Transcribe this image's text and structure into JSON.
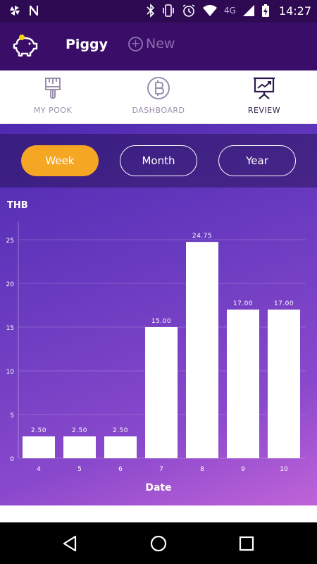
{
  "status_bar": {
    "time": "14:27",
    "network": "4G",
    "icons": [
      "pinwheel-icon",
      "n-icon",
      "bluetooth-icon",
      "vibrate-icon",
      "alarm-icon",
      "wifi-icon",
      "signal-icon",
      "battery-charging-icon"
    ]
  },
  "app_bar": {
    "title": "Piggy",
    "new_label": "New",
    "logo_icon": "piggy-bank-icon",
    "background": "#3a0e68"
  },
  "tabs": [
    {
      "label": "MY POOK",
      "icon": "brush-icon",
      "active": false
    },
    {
      "label": "DASHBOARD",
      "icon": "bitcoin-icon",
      "active": false
    },
    {
      "label": "REVIEW",
      "icon": "presentation-chart-icon",
      "active": true
    }
  ],
  "period": {
    "options": [
      {
        "label": "Week",
        "selected": true
      },
      {
        "label": "Month",
        "selected": false
      },
      {
        "label": "Year",
        "selected": false
      }
    ],
    "accent": "#f5a623"
  },
  "chart_data": {
    "type": "bar",
    "categories": [
      "4",
      "5",
      "6",
      "7",
      "8",
      "9",
      "10"
    ],
    "values": [
      2.5,
      2.5,
      2.5,
      15.0,
      24.75,
      17.0,
      17.0
    ],
    "value_labels": [
      "2.50",
      "2.50",
      "2.50",
      "15.00",
      "24.75",
      "17.00",
      "17.00"
    ],
    "yticks": [
      "0",
      "5",
      "10",
      "15",
      "20",
      "25"
    ],
    "ylim": [
      0,
      25
    ],
    "unit": "THB",
    "xlabel": "Date",
    "grid": true,
    "bar_color": "#ffffff"
  },
  "nav_bar": {
    "buttons": [
      "back-icon",
      "home-icon",
      "recents-icon"
    ]
  }
}
